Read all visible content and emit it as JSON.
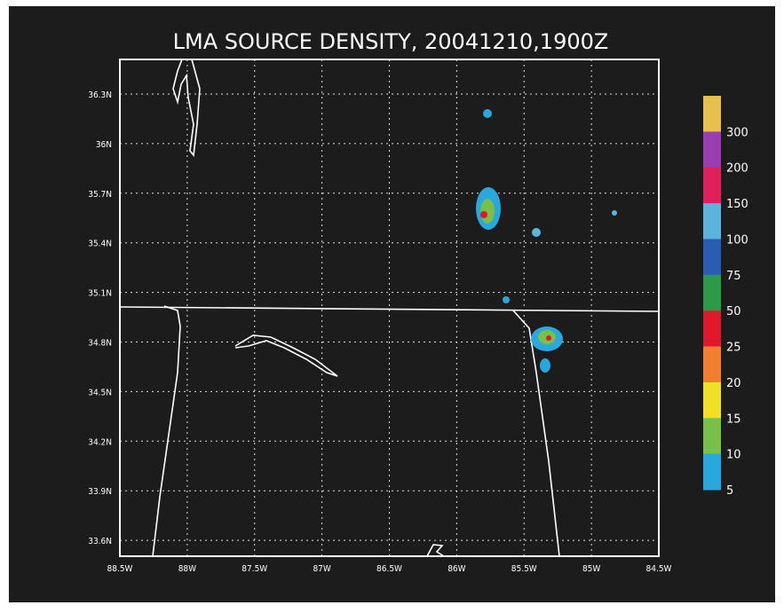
{
  "title": "LMA SOURCE DENSITY, 20041210,1900Z",
  "latitude_labels": [
    "36.3N",
    "36N",
    "35.7N",
    "35.4N",
    "35.1N",
    "34.8N",
    "34.5N",
    "34.2N",
    "33.9N",
    "33.6N"
  ],
  "longitude_labels": [
    "88.5W",
    "88W",
    "87.5W",
    "87W",
    "86.5W",
    "86W",
    "85.5W",
    "85W",
    "84.5W"
  ],
  "colorbar": {
    "labels": [
      "300",
      "200",
      "150",
      "100",
      "75",
      "50",
      "25",
      "20",
      "15",
      "10",
      "5"
    ],
    "colors": [
      "#e8c050",
      "#9b3fb0",
      "#e0205a",
      "#5ab4dc",
      "#2a5cb4",
      "#2e9a48",
      "#e0182c",
      "#f08030",
      "#f0e028",
      "#78c048",
      "#28a8dc"
    ]
  }
}
